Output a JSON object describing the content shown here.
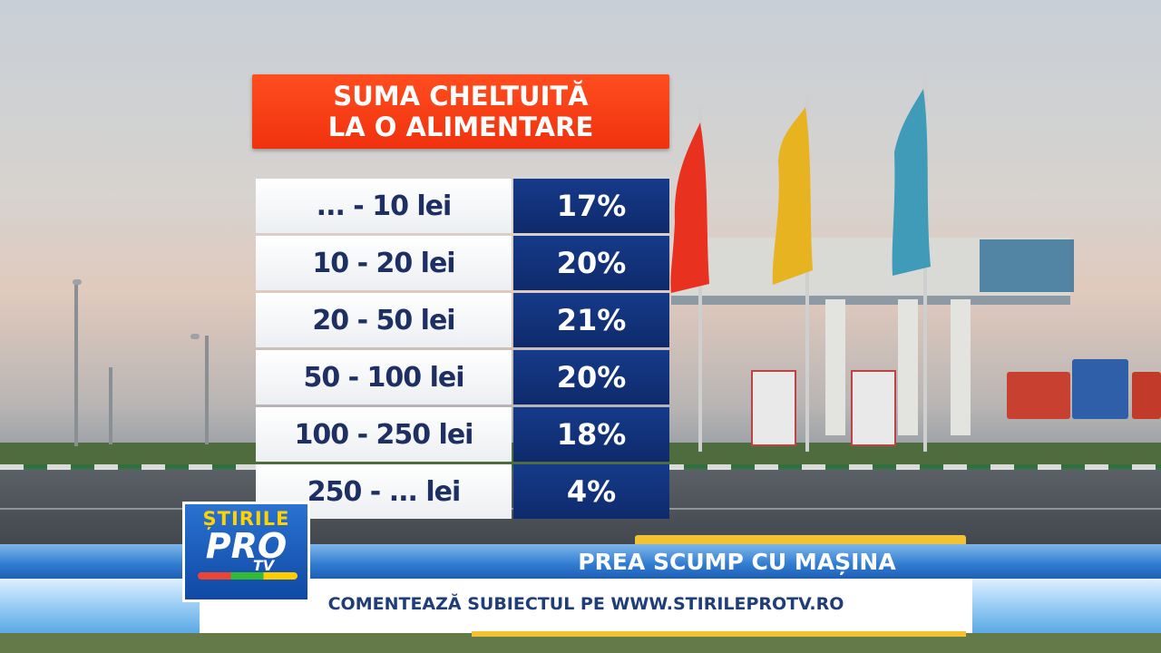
{
  "title": {
    "line1": "SUMA CHELTUITĂ",
    "line2": "LA O ALIMENTARE"
  },
  "rows": [
    {
      "range": "... - 10 lei",
      "percent": "17%"
    },
    {
      "range": "10 - 20 lei",
      "percent": "20%"
    },
    {
      "range": "20 - 50 lei",
      "percent": "21%"
    },
    {
      "range": "50 - 100 lei",
      "percent": "20%"
    },
    {
      "range": "100 - 250 lei",
      "percent": "18%"
    },
    {
      "range": "250 - ... lei",
      "percent": "4%"
    }
  ],
  "ticker": {
    "headline": "PREA SCUMP CU MAȘINA",
    "subline": "COMENTEAZĂ SUBIECTUL PE WWW.STIRILEPROTV.RO"
  },
  "logo": {
    "line1": "ȘTIRILE",
    "line2": "PRO",
    "line3": "TV"
  },
  "colors": {
    "title_bg": "#f0320e",
    "percent_bg": "#0e2a6b",
    "range_text": "#1d2f63",
    "ticker_blue": "#2f7bd0",
    "ticker_gold": "#f2c232"
  }
}
